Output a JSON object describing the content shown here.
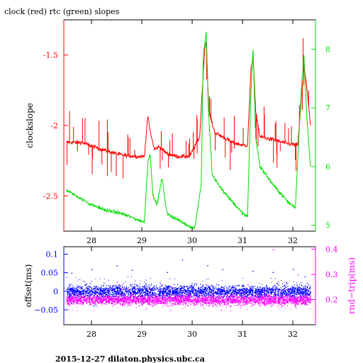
{
  "title": "clock (red) rtc (green) slopes",
  "footer": "2015-12-27  dilaton.physics.ubc.ca",
  "chart_data": [
    {
      "type": "line",
      "title": "clock (red) rtc (green) slopes",
      "xlim": [
        27.45,
        32.45
      ],
      "x_ticks": [
        28,
        29,
        30,
        31,
        32
      ],
      "left_axis": {
        "label": "clockslope",
        "ylim": [
          -2.75,
          -1.25
        ],
        "ticks": [
          -2.5,
          -2,
          -1.5
        ],
        "tick_labels": [
          "-2.5",
          "-2",
          "-1.5"
        ],
        "color": "#ff0000"
      },
      "right_axis": {
        "ylim": [
          4.9,
          8.5
        ],
        "ticks": [
          5,
          6,
          7,
          8
        ],
        "tick_labels": [
          "5",
          "6",
          "7",
          "8"
        ],
        "color": "#00dd00"
      },
      "series": [
        {
          "name": "clock",
          "axis": "left",
          "color": "#ff0000",
          "x": [
            27.5,
            27.8,
            28.2,
            28.6,
            28.9,
            29.05,
            29.12,
            29.17,
            29.25,
            29.35,
            29.5,
            29.7,
            29.95,
            30.15,
            30.2,
            30.25,
            30.28,
            30.33,
            30.45,
            30.6,
            30.8,
            31.0,
            31.1,
            31.17,
            31.21,
            31.26,
            31.35,
            31.6,
            31.9,
            32.1,
            32.16,
            32.21,
            32.27,
            32.35
          ],
          "y": [
            -2.12,
            -2.12,
            -2.17,
            -2.21,
            -2.22,
            -2.22,
            -1.93,
            -2.05,
            -2.17,
            -2.15,
            -2.2,
            -2.22,
            -2.22,
            -2.08,
            -1.75,
            -1.45,
            -1.4,
            -1.9,
            -2.05,
            -2.08,
            -2.12,
            -2.14,
            -2.14,
            -1.6,
            -1.5,
            -1.9,
            -2.08,
            -2.1,
            -2.13,
            -2.14,
            -1.85,
            -1.55,
            -1.7,
            -2.0
          ]
        },
        {
          "name": "rtc",
          "axis": "right",
          "color": "#00dd00",
          "x": [
            27.5,
            27.7,
            28.0,
            28.3,
            28.6,
            28.9,
            29.05,
            29.12,
            29.17,
            29.22,
            29.3,
            29.4,
            29.5,
            29.7,
            29.9,
            30.05,
            30.18,
            30.22,
            30.28,
            30.32,
            30.4,
            30.6,
            30.8,
            31.0,
            31.1,
            31.17,
            31.21,
            31.26,
            31.35,
            31.6,
            31.9,
            32.05,
            32.16,
            32.22,
            32.28,
            32.35
          ],
          "y": [
            5.6,
            5.5,
            5.35,
            5.25,
            5.2,
            5.1,
            5.05,
            6.1,
            6.2,
            5.5,
            5.35,
            5.8,
            5.2,
            5.1,
            5.0,
            4.95,
            5.7,
            7.9,
            8.3,
            7.0,
            5.85,
            5.6,
            5.4,
            5.2,
            5.15,
            7.3,
            8.0,
            6.5,
            6.0,
            5.7,
            5.4,
            5.3,
            7.2,
            7.9,
            6.8,
            6.0
          ]
        }
      ]
    },
    {
      "type": "scatter",
      "xlim": [
        27.45,
        32.45
      ],
      "x_ticks": [
        28,
        29,
        30,
        31,
        32
      ],
      "left_axis": {
        "label": "offset(ms)",
        "ylim": [
          -0.09,
          0.12
        ],
        "ticks": [
          -0.05,
          0,
          0.05,
          0.1
        ],
        "tick_labels": [
          "−0.05",
          "0",
          "0.05",
          "0.1"
        ],
        "color": "#0000ff"
      },
      "right_axis": {
        "label": "rnd−trip(ms)",
        "ylim": [
          0.1,
          0.41
        ],
        "ticks": [
          0.2,
          0.3,
          0.4
        ],
        "tick_labels": [
          "0.2",
          "0.3",
          "0.4"
        ],
        "color": "#ff00ff"
      },
      "series": [
        {
          "name": "offset",
          "axis": "left",
          "color": "#0000ff",
          "x_range": [
            27.5,
            32.35
          ],
          "center": 0.0,
          "spread": 0.018,
          "outliers": [
            [
              27.6,
              0.05
            ],
            [
              28.0,
              0.06
            ],
            [
              28.5,
              0.07
            ],
            [
              28.8,
              0.058
            ],
            [
              29.5,
              0.052
            ],
            [
              29.8,
              0.085
            ],
            [
              30.3,
              0.07
            ],
            [
              30.6,
              0.06
            ],
            [
              31.2,
              0.055
            ],
            [
              31.6,
              0.052
            ],
            [
              32.0,
              0.06
            ]
          ]
        },
        {
          "name": "rnd-trip",
          "axis": "right",
          "color": "#ff00ff",
          "x_range": [
            27.5,
            32.35
          ],
          "center": 0.2,
          "spread": 0.02,
          "outliers": [
            [
              28.5,
              0.27
            ],
            [
              28.6,
              0.26
            ],
            [
              29.4,
              0.26
            ],
            [
              29.6,
              0.25
            ],
            [
              30.3,
              0.26
            ],
            [
              31.1,
              0.26
            ],
            [
              31.6,
              0.4
            ],
            [
              32.1,
              0.3
            ]
          ]
        }
      ]
    }
  ]
}
